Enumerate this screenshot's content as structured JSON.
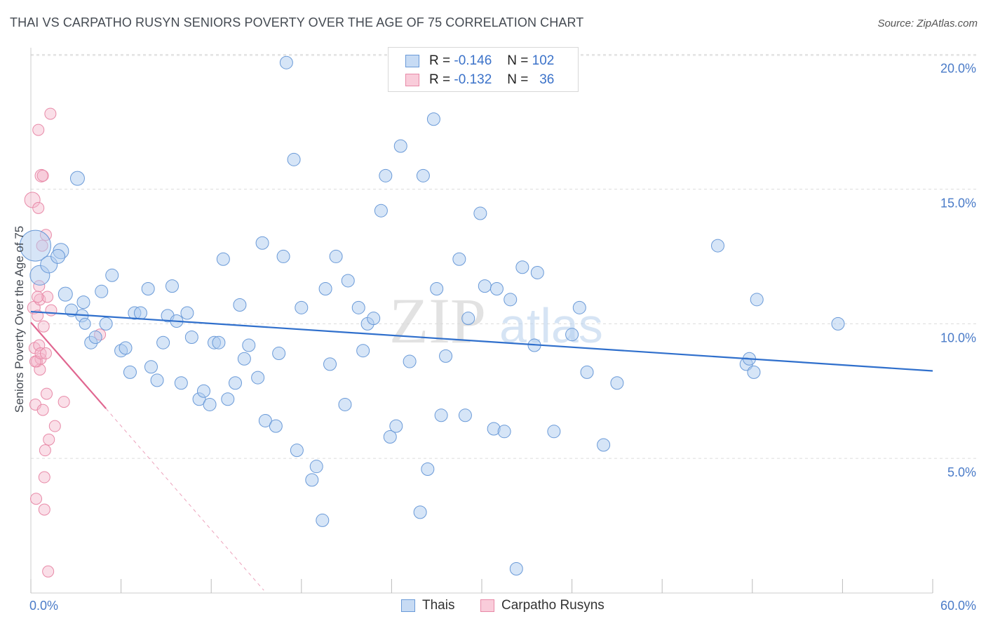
{
  "title": "THAI VS CARPATHO RUSYN SENIORS POVERTY OVER THE AGE OF 75 CORRELATION CHART",
  "source": "Source: ZipAtlas.com",
  "watermark": {
    "zip": "ZIP",
    "atlas": "atlas"
  },
  "legend_top": {
    "rows": [
      {
        "r_label": "R =",
        "r_value": "-0.146",
        "n_label": "N =",
        "n_value": "102"
      },
      {
        "r_label": "R =",
        "r_value": "-0.132",
        "n_label": "N =",
        "n_value": "36"
      }
    ]
  },
  "legend_bottom": {
    "thai": "Thais",
    "rusyn": "Carpatho Rusyns"
  },
  "colors": {
    "thai_fill": "#aecbf0",
    "thai_stroke": "#6a9ad8",
    "thai_line": "#2f6fcc",
    "rusyn_fill": "#f5b8cb",
    "rusyn_stroke": "#e88aa8",
    "rusyn_line": "#e06690",
    "tick_label": "#4a7bc8",
    "grid": "#dcdcdc"
  },
  "chart_data": {
    "type": "scatter",
    "title": "THAI VS CARPATHO RUSYN SENIORS POVERTY OVER THE AGE OF 75 CORRELATION CHART",
    "xlabel": "",
    "ylabel": "Seniors Poverty Over the Age of 75",
    "xlim": [
      0,
      60
    ],
    "ylim": [
      0,
      20.8
    ],
    "x_tick_labels": [
      "0.0%",
      "60.0%"
    ],
    "y_ticks": [
      5,
      10,
      15,
      20
    ],
    "y_tick_labels": [
      "5.0%",
      "10.0%",
      "15.0%",
      "20.0%"
    ],
    "grid": true,
    "legend_position": "top-center",
    "series": [
      {
        "name": "Thais",
        "r": -0.146,
        "n": 102,
        "trend": {
          "x": [
            0,
            60
          ],
          "y": [
            10.45,
            8.25
          ]
        },
        "points": [
          [
            0.3,
            12.9,
            22
          ],
          [
            0.6,
            11.8,
            14
          ],
          [
            1.2,
            12.2,
            12
          ],
          [
            2.0,
            12.7,
            11
          ],
          [
            1.8,
            12.5,
            10
          ],
          [
            2.3,
            11.1,
            10
          ],
          [
            2.7,
            10.5,
            9
          ],
          [
            3.4,
            10.3,
            9
          ],
          [
            3.5,
            10.8,
            9
          ],
          [
            3.1,
            15.4,
            10
          ],
          [
            4.0,
            9.3,
            9
          ],
          [
            4.3,
            9.5,
            9
          ],
          [
            4.7,
            11.2,
            9
          ],
          [
            5.0,
            10.0,
            9
          ],
          [
            5.4,
            11.8,
            9
          ],
          [
            6.0,
            9.0,
            9
          ],
          [
            6.3,
            9.1,
            9
          ],
          [
            6.6,
            8.2,
            9
          ],
          [
            6.9,
            10.4,
            9
          ],
          [
            7.3,
            10.4,
            9
          ],
          [
            7.8,
            11.3,
            9
          ],
          [
            8.0,
            8.4,
            9
          ],
          [
            8.4,
            7.9,
            9
          ],
          [
            8.8,
            9.3,
            9
          ],
          [
            9.1,
            10.3,
            9
          ],
          [
            9.4,
            11.4,
            9
          ],
          [
            9.7,
            10.1,
            9
          ],
          [
            10.0,
            7.8,
            9
          ],
          [
            10.4,
            10.4,
            9
          ],
          [
            10.7,
            9.5,
            9
          ],
          [
            11.2,
            7.2,
            9
          ],
          [
            11.5,
            7.5,
            9
          ],
          [
            11.9,
            7.0,
            9
          ],
          [
            12.2,
            9.3,
            9
          ],
          [
            12.5,
            9.3,
            9
          ],
          [
            12.8,
            12.4,
            9
          ],
          [
            13.1,
            7.2,
            9
          ],
          [
            13.6,
            7.8,
            9
          ],
          [
            13.9,
            10.7,
            9
          ],
          [
            14.2,
            8.7,
            9
          ],
          [
            14.5,
            9.2,
            9
          ],
          [
            15.1,
            8.0,
            9
          ],
          [
            15.4,
            13.0,
            9
          ],
          [
            15.6,
            6.4,
            9
          ],
          [
            16.3,
            6.2,
            9
          ],
          [
            16.5,
            8.9,
            9
          ],
          [
            16.8,
            12.5,
            9
          ],
          [
            17.0,
            19.7,
            9
          ],
          [
            17.5,
            16.1,
            9
          ],
          [
            17.7,
            5.3,
            9
          ],
          [
            18.0,
            10.6,
            9
          ],
          [
            18.7,
            4.2,
            9
          ],
          [
            19.0,
            4.7,
            9
          ],
          [
            19.4,
            2.7,
            9
          ],
          [
            19.6,
            11.3,
            9
          ],
          [
            19.9,
            8.5,
            9
          ],
          [
            20.3,
            12.5,
            9
          ],
          [
            20.9,
            7.0,
            9
          ],
          [
            21.1,
            11.6,
            9
          ],
          [
            21.8,
            10.6,
            9
          ],
          [
            22.1,
            9.0,
            9
          ],
          [
            22.4,
            10.0,
            9
          ],
          [
            22.8,
            10.2,
            9
          ],
          [
            23.3,
            14.2,
            9
          ],
          [
            23.6,
            15.5,
            9
          ],
          [
            23.9,
            5.8,
            9
          ],
          [
            24.3,
            6.2,
            9
          ],
          [
            24.6,
            16.6,
            9
          ],
          [
            25.2,
            8.6,
            9
          ],
          [
            25.9,
            3.0,
            9
          ],
          [
            26.1,
            15.5,
            9
          ],
          [
            26.4,
            4.6,
            9
          ],
          [
            26.8,
            17.6,
            9
          ],
          [
            27.0,
            11.3,
            9
          ],
          [
            27.3,
            6.6,
            9
          ],
          [
            27.6,
            8.8,
            9
          ],
          [
            28.5,
            12.4,
            9
          ],
          [
            28.9,
            6.6,
            9
          ],
          [
            29.1,
            10.2,
            9
          ],
          [
            29.9,
            14.1,
            9
          ],
          [
            30.2,
            11.4,
            9
          ],
          [
            30.8,
            6.1,
            9
          ],
          [
            31.0,
            11.3,
            9
          ],
          [
            31.5,
            6.0,
            9
          ],
          [
            31.9,
            10.9,
            9
          ],
          [
            32.3,
            0.9,
            9
          ],
          [
            32.7,
            12.1,
            9
          ],
          [
            33.5,
            9.2,
            9
          ],
          [
            33.7,
            11.9,
            9
          ],
          [
            34.8,
            6.0,
            9
          ],
          [
            36.0,
            9.6,
            9
          ],
          [
            36.5,
            10.6,
            9
          ],
          [
            37.0,
            8.2,
            9
          ],
          [
            38.1,
            5.5,
            9
          ],
          [
            39.0,
            7.8,
            9
          ],
          [
            45.7,
            12.9,
            9
          ],
          [
            47.6,
            8.5,
            9
          ],
          [
            47.8,
            8.7,
            9
          ],
          [
            48.1,
            8.2,
            9
          ],
          [
            48.3,
            10.9,
            9
          ],
          [
            53.7,
            10.0,
            9
          ],
          [
            3.6,
            10.0,
            8
          ]
        ]
      },
      {
        "name": "Carpatho Rusyns",
        "r": -0.132,
        "n": 36,
        "trend": {
          "x": [
            0,
            5.0
          ],
          "y": [
            10.05,
            6.85
          ],
          "dashed_to": {
            "x": 15.5,
            "y": 0.1
          }
        },
        "points": [
          [
            0.1,
            14.6,
            11
          ],
          [
            0.2,
            10.6,
            9
          ],
          [
            0.25,
            9.1,
            8
          ],
          [
            0.3,
            7.0,
            8
          ],
          [
            0.35,
            3.5,
            8
          ],
          [
            0.4,
            8.6,
            8
          ],
          [
            0.45,
            10.3,
            8
          ],
          [
            0.5,
            14.3,
            8
          ],
          [
            0.5,
            17.2,
            8
          ],
          [
            0.55,
            11.4,
            8
          ],
          [
            0.6,
            10.9,
            8
          ],
          [
            0.6,
            8.3,
            8
          ],
          [
            0.65,
            8.7,
            8
          ],
          [
            0.7,
            15.5,
            9
          ],
          [
            0.75,
            12.9,
            8
          ],
          [
            0.8,
            6.8,
            8
          ],
          [
            0.85,
            9.9,
            8
          ],
          [
            0.9,
            4.3,
            8
          ],
          [
            0.9,
            3.1,
            8
          ],
          [
            0.95,
            5.3,
            8
          ],
          [
            1.0,
            13.3,
            8
          ],
          [
            1.05,
            7.4,
            8
          ],
          [
            1.1,
            11.0,
            8
          ],
          [
            1.15,
            0.8,
            8
          ],
          [
            1.2,
            5.7,
            8
          ],
          [
            1.3,
            17.8,
            8
          ],
          [
            1.35,
            10.5,
            8
          ],
          [
            1.6,
            6.2,
            8
          ],
          [
            2.2,
            7.1,
            8
          ],
          [
            4.6,
            9.6,
            8
          ],
          [
            0.3,
            8.6,
            8
          ],
          [
            0.55,
            9.2,
            8
          ],
          [
            0.65,
            8.9,
            8
          ],
          [
            0.45,
            11.0,
            8
          ],
          [
            0.8,
            15.5,
            8
          ],
          [
            1.0,
            8.9,
            8
          ]
        ]
      }
    ]
  }
}
